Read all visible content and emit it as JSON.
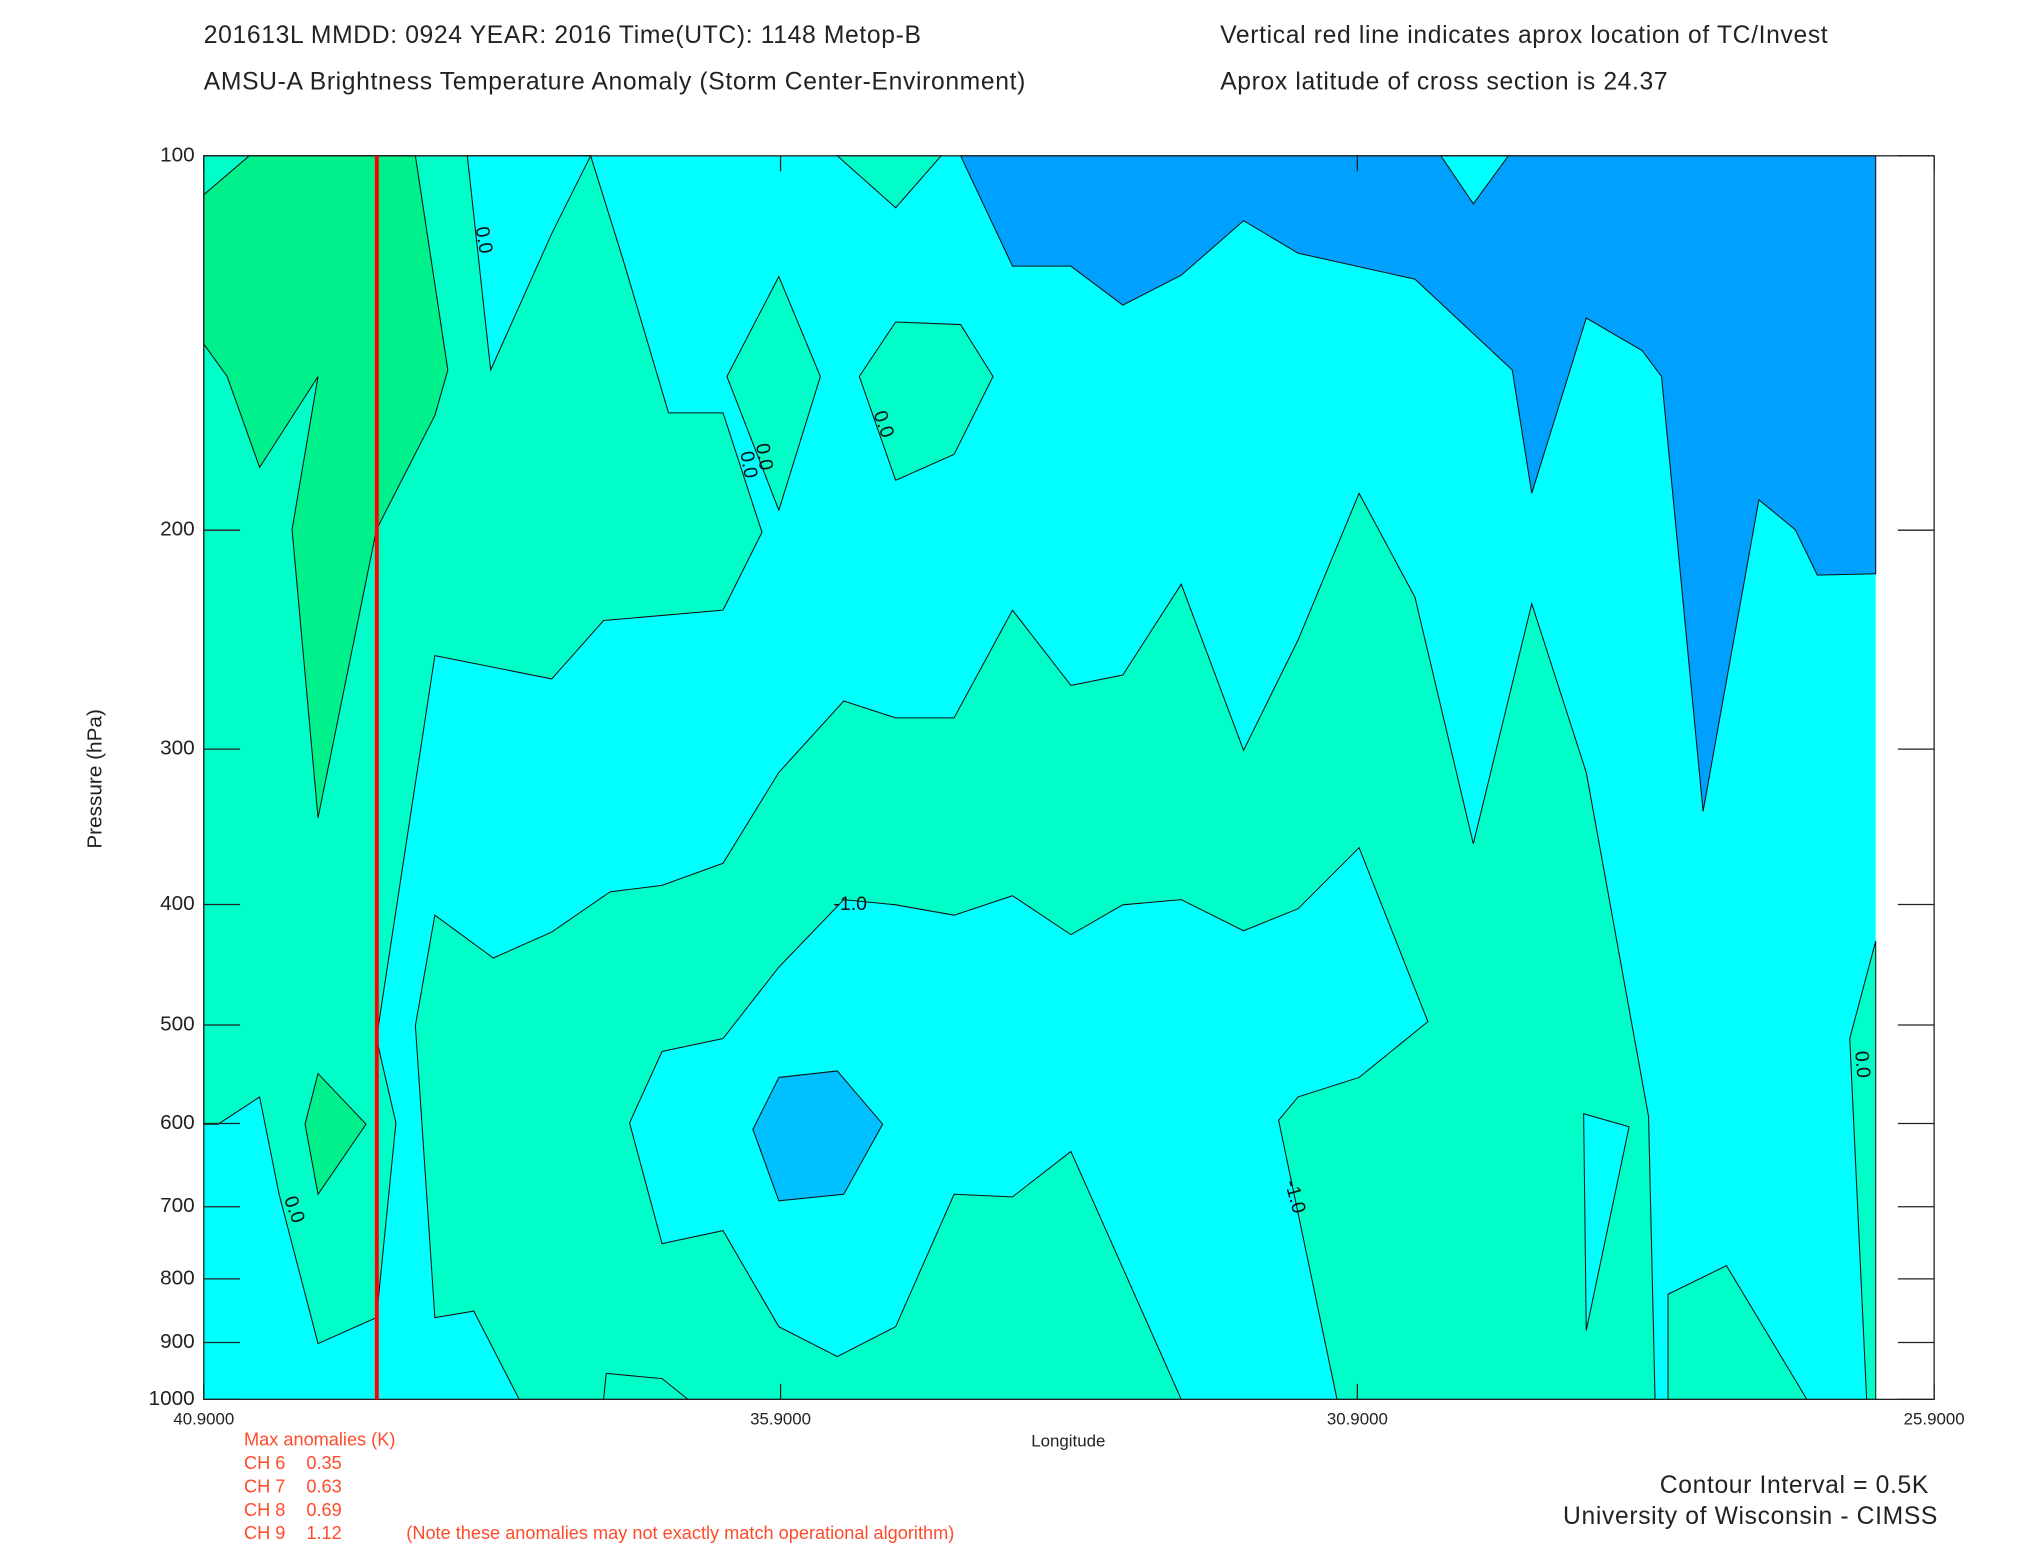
{
  "chart_data": {
    "type": "contour",
    "header_left": [
      "201613L  MMDD: 0924 YEAR: 2016 Time(UTC): 1148 Metop-B",
      "AMSU-A Brightness Temperature Anomaly (Storm Center-Environment)"
    ],
    "header_right": [
      "Vertical red line indicates aprox location of TC/Invest",
      "Aprox latitude of cross section is 24.37"
    ],
    "xlabel": "Longitude",
    "ylabel": "Pressure (hPa)",
    "xlim": [
      40.9,
      25.9
    ],
    "xticks": [
      {
        "value": 40.9,
        "label": "40.9000"
      },
      {
        "value": 35.9,
        "label": "35.9000"
      },
      {
        "value": 30.9,
        "label": "30.9000"
      },
      {
        "value": 25.9,
        "label": "25.9000"
      }
    ],
    "ylim": [
      100,
      1000
    ],
    "yticks": [
      100,
      200,
      300,
      400,
      500,
      600,
      700,
      800,
      900,
      1000
    ],
    "ylog": true,
    "tc_longitude": 39.4,
    "tc_color": "#ff0000",
    "fill_colors": [
      "#00ffff",
      "#00ffc8",
      "#00f08c",
      "#00a0ff",
      "#00c0ff"
    ],
    "contour_labels": [
      "0.0",
      "0.0",
      "0.0",
      "0.0",
      "0.0",
      "0.0",
      "-1.0",
      "-1.0"
    ],
    "anomalies_title": "Max anomalies (K)",
    "anomalies": [
      {
        "channel": "CH 6",
        "value": 0.35
      },
      {
        "channel": "CH 7",
        "value": 0.63
      },
      {
        "channel": "CH 8",
        "value": 0.69
      },
      {
        "channel": "CH 9",
        "value": 1.12
      }
    ],
    "note": "(Note these anomalies may not exactly match operational algorithm)",
    "contour_interval": "Contour Interval = 0.5K",
    "credit": "University of Wisconsin - CIMSS"
  }
}
